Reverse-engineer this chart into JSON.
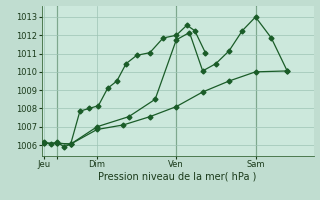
{
  "background_color": "#c0ddd0",
  "plot_bg_color": "#cce8dc",
  "grid_color": "#9dc4b4",
  "line_color": "#1a5c28",
  "xlabel": "Pression niveau de la mer( hPa )",
  "ylim": [
    1005.4,
    1013.6
  ],
  "yticks": [
    1006,
    1007,
    1008,
    1009,
    1010,
    1011,
    1012,
    1013
  ],
  "xlim": [
    -0.1,
    10.2
  ],
  "vline_positions": [
    0.5,
    5.0,
    8.0
  ],
  "xtick_positions": [
    0.0,
    0.5,
    2.0,
    5.0,
    8.0
  ],
  "xtick_labels": [
    "Jeu",
    "",
    "Dim",
    "Ven",
    "Sam"
  ],
  "series1_x": [
    0.0,
    0.25,
    0.5,
    0.75,
    1.0,
    1.35,
    1.7,
    2.05,
    2.4,
    2.75,
    3.1,
    3.5,
    4.0,
    4.5,
    5.0,
    5.4,
    5.7,
    6.1
  ],
  "series1_y": [
    1006.15,
    1006.05,
    1006.15,
    1005.9,
    1006.05,
    1007.85,
    1008.0,
    1008.15,
    1009.1,
    1009.5,
    1010.45,
    1010.9,
    1011.05,
    1011.85,
    1012.0,
    1012.55,
    1012.25,
    1011.05
  ],
  "series2_x": [
    0.0,
    0.5,
    1.0,
    2.0,
    3.2,
    4.2,
    5.0,
    5.5,
    6.0,
    6.5,
    7.0,
    7.5,
    8.0,
    8.6,
    9.2
  ],
  "series2_y": [
    1006.1,
    1006.1,
    1006.05,
    1007.0,
    1007.55,
    1008.5,
    1011.75,
    1012.15,
    1010.05,
    1010.45,
    1011.15,
    1012.25,
    1013.0,
    1011.85,
    1010.05
  ],
  "series3_x": [
    0.0,
    0.5,
    1.0,
    2.0,
    3.0,
    4.0,
    5.0,
    6.0,
    7.0,
    8.0,
    9.2
  ],
  "series3_y": [
    1006.1,
    1006.1,
    1006.05,
    1006.85,
    1007.1,
    1007.55,
    1008.1,
    1008.9,
    1009.5,
    1010.0,
    1010.05
  ],
  "marker_size": 2.5,
  "line_width": 0.9,
  "ytick_fontsize": 6,
  "xtick_fontsize": 6,
  "xlabel_fontsize": 7
}
